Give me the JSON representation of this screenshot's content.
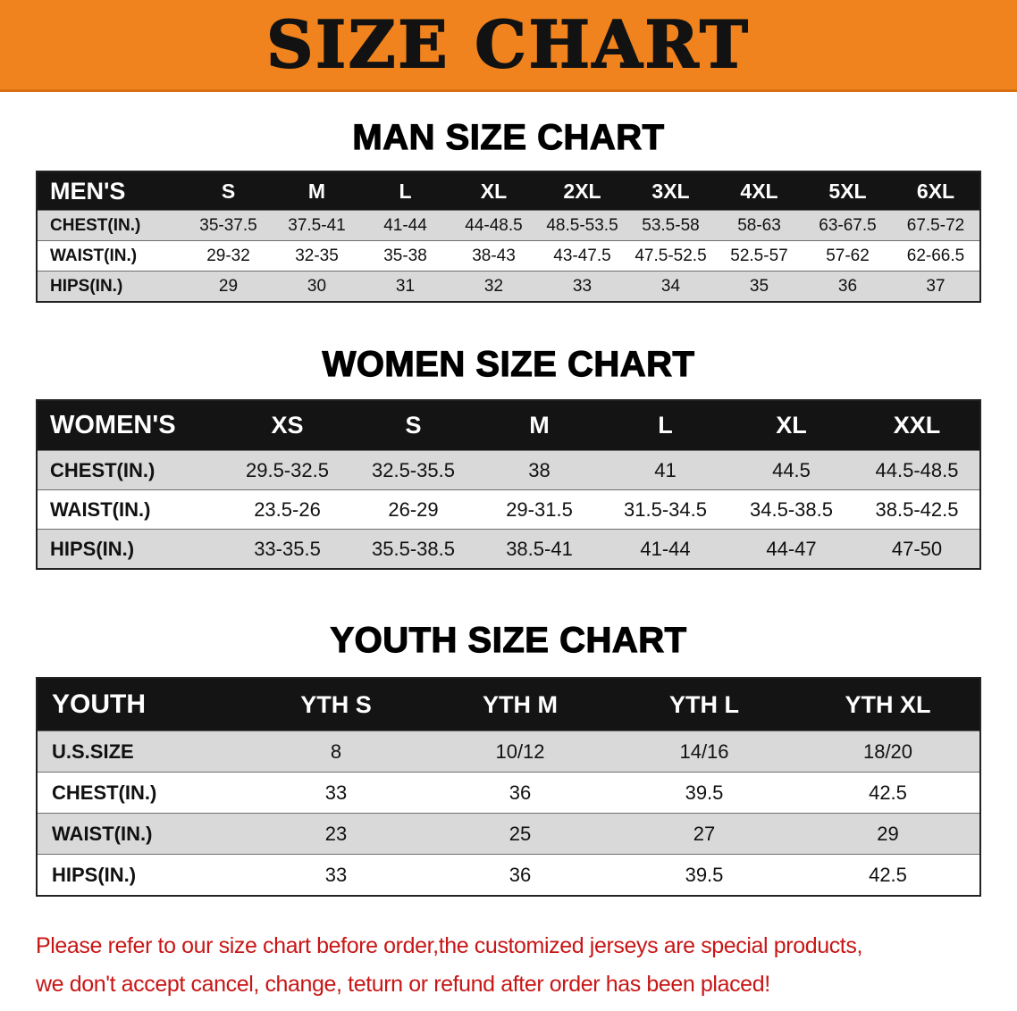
{
  "banner": {
    "title": "SIZE CHART"
  },
  "men": {
    "heading": "MAN SIZE CHART",
    "label": "MEN'S",
    "sizes": [
      "S",
      "M",
      "L",
      "XL",
      "2XL",
      "3XL",
      "4XL",
      "5XL",
      "6XL"
    ],
    "rows": [
      {
        "label": "CHEST(IN.)",
        "values": [
          "35-37.5",
          "37.5-41",
          "41-44",
          "44-48.5",
          "48.5-53.5",
          "53.5-58",
          "58-63",
          "63-67.5",
          "67.5-72"
        ]
      },
      {
        "label": "WAIST(IN.)",
        "values": [
          "29-32",
          "32-35",
          "35-38",
          "38-43",
          "43-47.5",
          "47.5-52.5",
          "52.5-57",
          "57-62",
          "62-66.5"
        ]
      },
      {
        "label": "HIPS(IN.)",
        "values": [
          "29",
          "30",
          "31",
          "32",
          "33",
          "34",
          "35",
          "36",
          "37"
        ]
      }
    ]
  },
  "women": {
    "heading": "WOMEN SIZE CHART",
    "label": "WOMEN'S",
    "sizes": [
      "XS",
      "S",
      "M",
      "L",
      "XL",
      "XXL"
    ],
    "rows": [
      {
        "label": "CHEST(IN.)",
        "values": [
          "29.5-32.5",
          "32.5-35.5",
          "38",
          "41",
          "44.5",
          "44.5-48.5"
        ]
      },
      {
        "label": "WAIST(IN.)",
        "values": [
          "23.5-26",
          "26-29",
          "29-31.5",
          "31.5-34.5",
          "34.5-38.5",
          "38.5-42.5"
        ]
      },
      {
        "label": "HIPS(IN.)",
        "values": [
          "33-35.5",
          "35.5-38.5",
          "38.5-41",
          "41-44",
          "44-47",
          "47-50"
        ]
      }
    ]
  },
  "youth": {
    "heading": "YOUTH SIZE CHART",
    "label": "YOUTH",
    "sizes": [
      "YTH S",
      "YTH M",
      "YTH L",
      "YTH XL"
    ],
    "rows": [
      {
        "label": "U.S.SIZE",
        "values": [
          "8",
          "10/12",
          "14/16",
          "18/20"
        ]
      },
      {
        "label": "CHEST(IN.)",
        "values": [
          "33",
          "36",
          "39.5",
          "42.5"
        ]
      },
      {
        "label": "WAIST(IN.)",
        "values": [
          "23",
          "25",
          "27",
          "29"
        ]
      },
      {
        "label": "HIPS(IN.)",
        "values": [
          "33",
          "36",
          "39.5",
          "42.5"
        ]
      }
    ]
  },
  "disclaimer": {
    "line1": "Please refer to our size chart before order,the customized jerseys are special products,",
    "line2": "we don't accept cancel, change, teturn or refund after order has been placed!"
  },
  "colors": {
    "banner_orange": "#f0831d",
    "stripe_gray": "#d9d9d9",
    "header_black": "#141414",
    "disclaimer_red": "#c81616"
  }
}
